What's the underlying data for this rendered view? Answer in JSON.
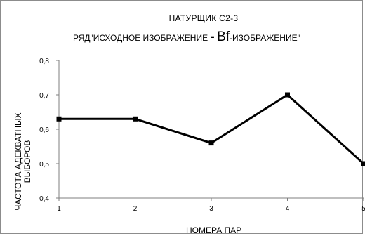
{
  "chart_data": {
    "type": "line",
    "title": "НАТУРЩИК  С2-3",
    "subtitle": {
      "part1": "РЯД\"ИСХОДНОЕ ИЗОБРАЖЕНИЕ ",
      "separator": "-",
      "part2": " ",
      "bf": "Bf",
      "part3": "-ИЗОБРАЖЕНИЕ\""
    },
    "xlabel": "НОМЕРА   ПАР",
    "ylabel_lines": [
      "ЧАСТОТА  АДЕКВАТНЫХ",
      "ВЫБОРОВ"
    ],
    "x": [
      1,
      2,
      3,
      4,
      5
    ],
    "x_tick_labels": [
      "1",
      "2",
      "3",
      "4",
      "5"
    ],
    "y_tick_labels": [
      "0,4",
      "0,5",
      "0,6",
      "0,7",
      "0,8"
    ],
    "y_ticks": [
      0.4,
      0.5,
      0.6,
      0.7,
      0.8
    ],
    "ylim": [
      0.4,
      0.8
    ],
    "series": [
      {
        "values": [
          0.63,
          0.63,
          0.56,
          0.7,
          0.5
        ]
      }
    ],
    "line_color": "#000000",
    "axis_color": "#7f7f7f",
    "grid": false,
    "legend": "none"
  }
}
